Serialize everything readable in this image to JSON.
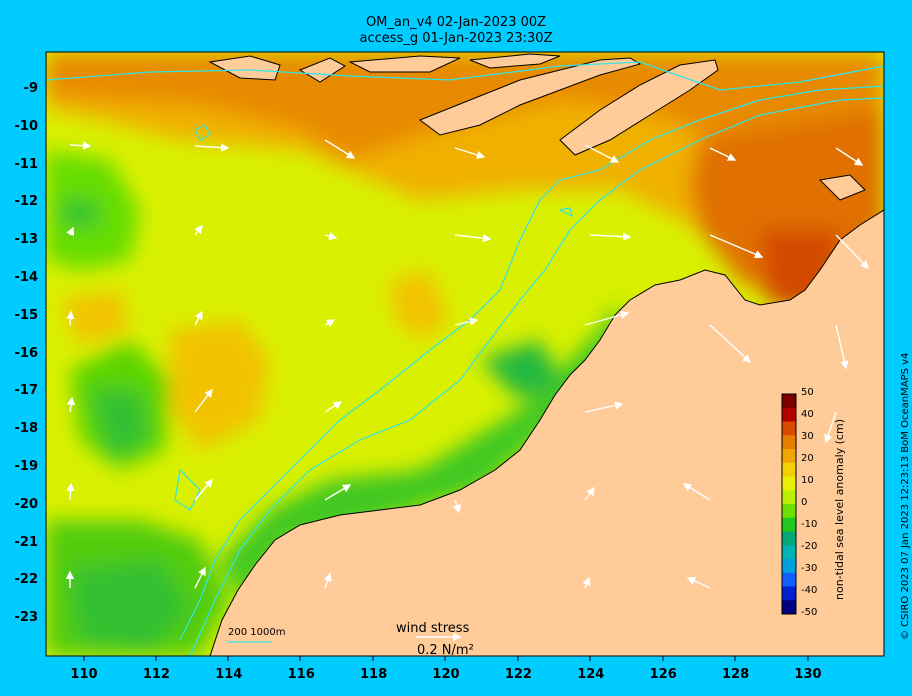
{
  "header": {
    "line1": "OM_an_v4  02-Jan-2023 00Z",
    "line2": "access_g 01-Jan-2023 23:30Z"
  },
  "axes": {
    "lat_ticks": [
      "-9",
      "-10",
      "-11",
      "-12",
      "-13",
      "-14",
      "-15",
      "-16",
      "-17",
      "-18",
      "-19",
      "-20",
      "-21",
      "-22",
      "-23"
    ],
    "lon_ticks": [
      "110",
      "112",
      "114",
      "116",
      "118",
      "120",
      "122",
      "124",
      "126",
      "128",
      "130"
    ]
  },
  "colorbar": {
    "title": "non-tidal sea level anomaly (cm)",
    "ticks": [
      "50",
      "40",
      "30",
      "20",
      "10",
      "0",
      "-10",
      "-20",
      "-30",
      "-40",
      "-50"
    ],
    "colors": [
      "#7a0000",
      "#b30000",
      "#d94a00",
      "#e67e00",
      "#f0a800",
      "#f5d000",
      "#e8f000",
      "#b8f000",
      "#6ee000",
      "#20c820",
      "#00a878",
      "#00b4b4",
      "#00a0e0",
      "#1060ff",
      "#0020d0",
      "#000080"
    ]
  },
  "legend": {
    "wind_title": "wind stress",
    "wind_value": "0.2 N/m²",
    "scale": "200  1000m"
  },
  "credit": "© CSIRO 2023   07 Jan 2023 12:23:13 BoM OceanMAPS v4",
  "colors": {
    "background": "#00ccff",
    "land": "#ffcc99",
    "contour": "#2ee6e6"
  }
}
